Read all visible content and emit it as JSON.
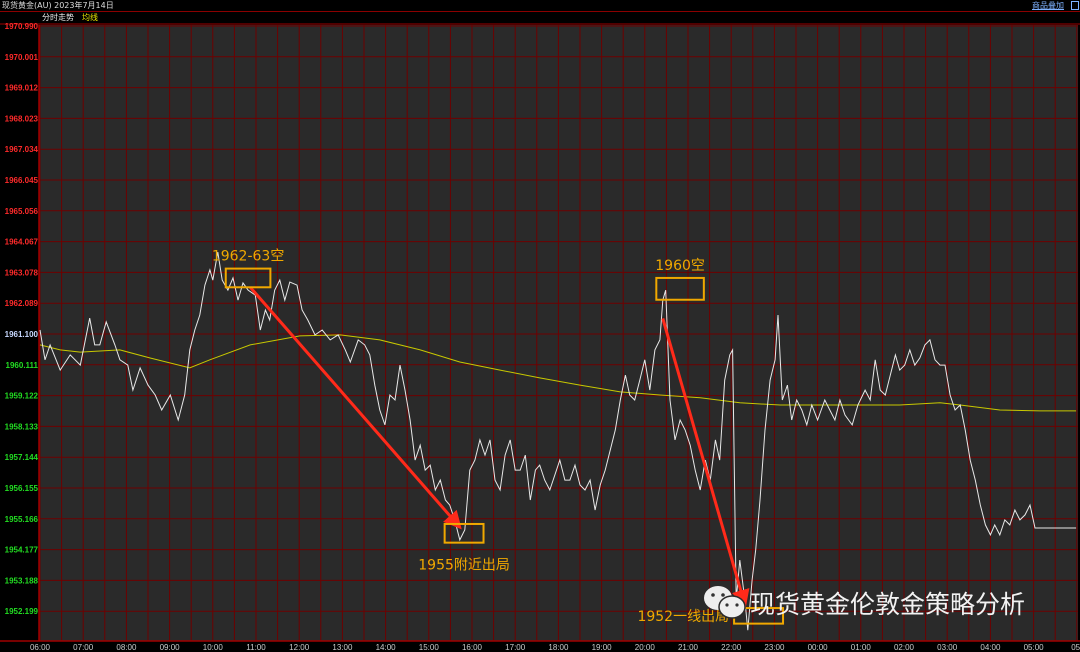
{
  "header": {
    "title": "现货黄金(AU) 2023年7月14日",
    "overlay_button": "商品叠加"
  },
  "subheader": {
    "mode": "分时走势",
    "legend_avg": "均线"
  },
  "colors": {
    "background": "#2a2a2a",
    "grid": "#6e0000",
    "price_line": "#e8e8e8",
    "avg_line": "#c8c800",
    "up_label": "#ff2a2a",
    "down_label": "#22dd22",
    "ref_label": "#c8d8ff",
    "annotation": "#f0a800",
    "arrow": "#ff2a1a"
  },
  "watermark": {
    "icon": "wechat-icon",
    "text": "现货黄金伦敦金策略分析"
  },
  "chart_data": {
    "type": "line",
    "title": "",
    "xlabel": "",
    "ylabel": "",
    "x_ticks": [
      "06:00",
      "07:00",
      "08:00",
      "09:00",
      "10:00",
      "11:00",
      "12:00",
      "13:00",
      "14:00",
      "15:00",
      "16:00",
      "17:00",
      "18:00",
      "19:00",
      "20:00",
      "21:00",
      "22:00",
      "23:00",
      "00:00",
      "01:00",
      "02:00",
      "03:00",
      "04:00",
      "05:00",
      "05:"
    ],
    "y_ticks": [
      1970.99,
      1970.001,
      1969.012,
      1968.023,
      1967.034,
      1966.045,
      1965.056,
      1964.067,
      1963.078,
      1962.089,
      1961.1,
      1960.111,
      1959.122,
      1958.133,
      1957.144,
      1956.155,
      1955.166,
      1954.177,
      1953.188,
      1952.199
    ],
    "reference_price": 1961.1,
    "ylim": [
      1951.27,
      1970.99
    ],
    "xlim": [
      "06:00",
      "06:00"
    ],
    "grid": true,
    "series": [
      {
        "key": "price",
        "points": [
          [
            "06:00",
            1961.23
          ],
          [
            "06:07",
            1960.27
          ],
          [
            "06:14",
            1960.75
          ],
          [
            "06:28",
            1959.94
          ],
          [
            "06:42",
            1960.43
          ],
          [
            "06:56",
            1960.1
          ],
          [
            "07:09",
            1961.61
          ],
          [
            "07:16",
            1960.75
          ],
          [
            "07:23",
            1960.75
          ],
          [
            "07:32",
            1961.49
          ],
          [
            "07:44",
            1960.75
          ],
          [
            "07:51",
            1960.27
          ],
          [
            "08:02",
            1960.1
          ],
          [
            "08:09",
            1959.3
          ],
          [
            "08:19",
            1960.01
          ],
          [
            "08:30",
            1959.46
          ],
          [
            "08:40",
            1959.14
          ],
          [
            "08:49",
            1958.66
          ],
          [
            "09:01",
            1959.14
          ],
          [
            "09:12",
            1958.34
          ],
          [
            "09:21",
            1959.14
          ],
          [
            "09:28",
            1960.59
          ],
          [
            "09:35",
            1961.23
          ],
          [
            "09:42",
            1961.71
          ],
          [
            "09:49",
            1962.67
          ],
          [
            "09:56",
            1963.16
          ],
          [
            "10:00",
            1962.83
          ],
          [
            "10:07",
            1963.73
          ],
          [
            "10:13",
            1962.83
          ],
          [
            "10:21",
            1962.51
          ],
          [
            "10:28",
            1962.9
          ],
          [
            "10:35",
            1962.19
          ],
          [
            "10:42",
            1962.74
          ],
          [
            "10:49",
            1962.51
          ],
          [
            "10:59",
            1962.35
          ],
          [
            "11:06",
            1961.23
          ],
          [
            "11:13",
            1961.87
          ],
          [
            "11:19",
            1961.55
          ],
          [
            "11:26",
            1962.51
          ],
          [
            "11:33",
            1962.83
          ],
          [
            "11:40",
            1962.19
          ],
          [
            "11:47",
            1962.77
          ],
          [
            "11:57",
            1962.67
          ],
          [
            "12:04",
            1961.87
          ],
          [
            "12:12",
            1961.55
          ],
          [
            "12:22",
            1961.07
          ],
          [
            "12:32",
            1961.23
          ],
          [
            "12:43",
            1960.91
          ],
          [
            "12:54",
            1961.07
          ],
          [
            "13:04",
            1960.59
          ],
          [
            "13:11",
            1960.2
          ],
          [
            "13:22",
            1960.91
          ],
          [
            "13:31",
            1960.75
          ],
          [
            "13:38",
            1960.43
          ],
          [
            "13:45",
            1959.46
          ],
          [
            "13:52",
            1958.66
          ],
          [
            "13:59",
            1958.18
          ],
          [
            "14:06",
            1959.14
          ],
          [
            "14:13",
            1958.98
          ],
          [
            "14:20",
            1960.1
          ],
          [
            "14:27",
            1959.3
          ],
          [
            "14:34",
            1958.34
          ],
          [
            "14:41",
            1957.05
          ],
          [
            "14:48",
            1957.53
          ],
          [
            "14:55",
            1956.73
          ],
          [
            "15:02",
            1956.89
          ],
          [
            "15:09",
            1956.09
          ],
          [
            "15:16",
            1956.41
          ],
          [
            "15:23",
            1955.77
          ],
          [
            "15:29",
            1955.61
          ],
          [
            "15:36",
            1955.13
          ],
          [
            "15:43",
            1954.49
          ],
          [
            "15:50",
            1954.81
          ],
          [
            "15:57",
            1956.73
          ],
          [
            "16:04",
            1957.05
          ],
          [
            "16:11",
            1957.7
          ],
          [
            "16:18",
            1957.21
          ],
          [
            "16:25",
            1957.7
          ],
          [
            "16:32",
            1956.41
          ],
          [
            "16:39",
            1956.09
          ],
          [
            "16:46",
            1957.21
          ],
          [
            "16:53",
            1957.7
          ],
          [
            "17:00",
            1956.73
          ],
          [
            "17:07",
            1956.73
          ],
          [
            "17:14",
            1957.21
          ],
          [
            "17:21",
            1955.77
          ],
          [
            "17:28",
            1956.73
          ],
          [
            "17:34",
            1956.89
          ],
          [
            "17:41",
            1956.41
          ],
          [
            "17:48",
            1956.09
          ],
          [
            "17:55",
            1956.57
          ],
          [
            "18:02",
            1957.05
          ],
          [
            "18:09",
            1956.41
          ],
          [
            "18:16",
            1956.41
          ],
          [
            "18:23",
            1956.89
          ],
          [
            "18:30",
            1956.25
          ],
          [
            "18:37",
            1956.09
          ],
          [
            "18:44",
            1956.41
          ],
          [
            "18:51",
            1955.45
          ],
          [
            "18:58",
            1956.25
          ],
          [
            "19:05",
            1956.73
          ],
          [
            "19:12",
            1957.37
          ],
          [
            "19:19",
            1958.02
          ],
          [
            "19:26",
            1958.98
          ],
          [
            "19:33",
            1959.78
          ],
          [
            "19:39",
            1959.14
          ],
          [
            "19:46",
            1958.98
          ],
          [
            "19:53",
            1959.62
          ],
          [
            "20:00",
            1960.27
          ],
          [
            "20:07",
            1959.3
          ],
          [
            "20:14",
            1960.59
          ],
          [
            "20:21",
            1960.91
          ],
          [
            "20:25",
            1962.19
          ],
          [
            "20:29",
            1962.51
          ],
          [
            "20:35",
            1958.98
          ],
          [
            "20:42",
            1957.7
          ],
          [
            "20:49",
            1958.34
          ],
          [
            "20:56",
            1958.02
          ],
          [
            "21:03",
            1957.53
          ],
          [
            "21:10",
            1956.73
          ],
          [
            "21:17",
            1956.09
          ],
          [
            "21:24",
            1957.05
          ],
          [
            "21:31",
            1956.41
          ],
          [
            "21:38",
            1957.7
          ],
          [
            "21:44",
            1957.05
          ],
          [
            "21:51",
            1959.62
          ],
          [
            "21:58",
            1960.43
          ],
          [
            "22:02",
            1960.59
          ],
          [
            "22:07",
            1952.56
          ],
          [
            "22:12",
            1953.84
          ],
          [
            "22:19",
            1952.56
          ],
          [
            "22:23",
            1951.59
          ],
          [
            "22:29",
            1953.2
          ],
          [
            "22:34",
            1954.17
          ],
          [
            "22:40",
            1955.77
          ],
          [
            "22:47",
            1958.02
          ],
          [
            "22:54",
            1959.62
          ],
          [
            "23:01",
            1960.27
          ],
          [
            "23:05",
            1961.71
          ],
          [
            "23:11",
            1958.98
          ],
          [
            "23:18",
            1959.46
          ],
          [
            "23:24",
            1958.34
          ],
          [
            "23:31",
            1958.98
          ],
          [
            "23:38",
            1958.66
          ],
          [
            "23:45",
            1958.18
          ],
          [
            "23:52",
            1958.82
          ],
          [
            "00:00",
            1958.34
          ],
          [
            "00:10",
            1958.98
          ],
          [
            "00:17",
            1958.66
          ],
          [
            "00:24",
            1958.34
          ],
          [
            "00:31",
            1958.98
          ],
          [
            "00:38",
            1958.5
          ],
          [
            "00:48",
            1958.18
          ],
          [
            "00:56",
            1958.82
          ],
          [
            "01:06",
            1959.3
          ],
          [
            "01:13",
            1958.98
          ],
          [
            "01:20",
            1960.27
          ],
          [
            "01:27",
            1959.3
          ],
          [
            "01:34",
            1959.14
          ],
          [
            "01:41",
            1959.78
          ],
          [
            "01:48",
            1960.43
          ],
          [
            "01:54",
            1959.94
          ],
          [
            "02:01",
            1960.1
          ],
          [
            "02:08",
            1960.59
          ],
          [
            "02:15",
            1960.1
          ],
          [
            "02:22",
            1960.33
          ],
          [
            "02:29",
            1960.75
          ],
          [
            "02:36",
            1960.91
          ],
          [
            "02:43",
            1960.27
          ],
          [
            "02:50",
            1960.1
          ],
          [
            "02:57",
            1960.1
          ],
          [
            "03:04",
            1959.14
          ],
          [
            "03:11",
            1958.66
          ],
          [
            "03:18",
            1958.82
          ],
          [
            "03:25",
            1958.02
          ],
          [
            "03:32",
            1957.05
          ],
          [
            "03:39",
            1956.41
          ],
          [
            "03:46",
            1955.61
          ],
          [
            "03:53",
            1954.97
          ],
          [
            "04:00",
            1954.65
          ],
          [
            "04:06",
            1954.97
          ],
          [
            "04:13",
            1954.65
          ],
          [
            "04:20",
            1955.13
          ],
          [
            "04:27",
            1954.97
          ],
          [
            "04:34",
            1955.45
          ],
          [
            "04:41",
            1955.13
          ],
          [
            "04:48",
            1955.29
          ],
          [
            "04:55",
            1955.61
          ],
          [
            "05:02",
            1954.87
          ],
          [
            "05:59",
            1954.87
          ]
        ]
      },
      {
        "key": "avg",
        "name": "均线",
        "points": [
          [
            "06:00",
            1960.75
          ],
          [
            "06:28",
            1960.59
          ],
          [
            "06:56",
            1960.52
          ],
          [
            "07:51",
            1960.59
          ],
          [
            "08:33",
            1960.33
          ],
          [
            "09:28",
            1960.01
          ],
          [
            "09:56",
            1960.27
          ],
          [
            "10:52",
            1960.75
          ],
          [
            "12:01",
            1961.04
          ],
          [
            "12:57",
            1961.07
          ],
          [
            "13:52",
            1960.91
          ],
          [
            "14:48",
            1960.59
          ],
          [
            "15:43",
            1960.2
          ],
          [
            "16:39",
            1959.94
          ],
          [
            "17:34",
            1959.69
          ],
          [
            "18:30",
            1959.46
          ],
          [
            "19:26",
            1959.24
          ],
          [
            "20:21",
            1959.14
          ],
          [
            "21:17",
            1959.05
          ],
          [
            "22:12",
            1958.89
          ],
          [
            "23:08",
            1958.82
          ],
          [
            "00:59",
            1958.82
          ],
          [
            "01:54",
            1958.82
          ],
          [
            "02:50",
            1958.89
          ],
          [
            "03:18",
            1958.82
          ],
          [
            "04:13",
            1958.66
          ],
          [
            "05:09",
            1958.63
          ],
          [
            "05:59",
            1958.63
          ]
        ]
      }
    ],
    "annotations": [
      {
        "label": "1962-63空",
        "box": {
          "t0": "10:18",
          "t1": "11:20",
          "p0": 1962.6,
          "p1": 1963.2
        },
        "label_pos": "above"
      },
      {
        "label": "1955附近出局",
        "box": {
          "t0": "15:22",
          "t1": "16:16",
          "p0": 1954.4,
          "p1": 1955.0
        },
        "label_pos": "below"
      },
      {
        "label": "1960空",
        "box": {
          "t0": "20:16",
          "t1": "21:22",
          "p0": 1962.2,
          "p1": 1962.9
        },
        "label_pos": "above"
      },
      {
        "label": "1952一线出局",
        "box": {
          "t0": "22:04",
          "t1": "23:12",
          "p0": 1951.8,
          "p1": 1952.3
        },
        "label_pos": "left"
      }
    ],
    "arrows": [
      {
        "from": [
          "10:52",
          1962.6
        ],
        "to": [
          "15:43",
          1954.9
        ]
      },
      {
        "from": [
          "20:25",
          1961.6
        ],
        "to": [
          "22:19",
          1952.4
        ]
      }
    ]
  }
}
